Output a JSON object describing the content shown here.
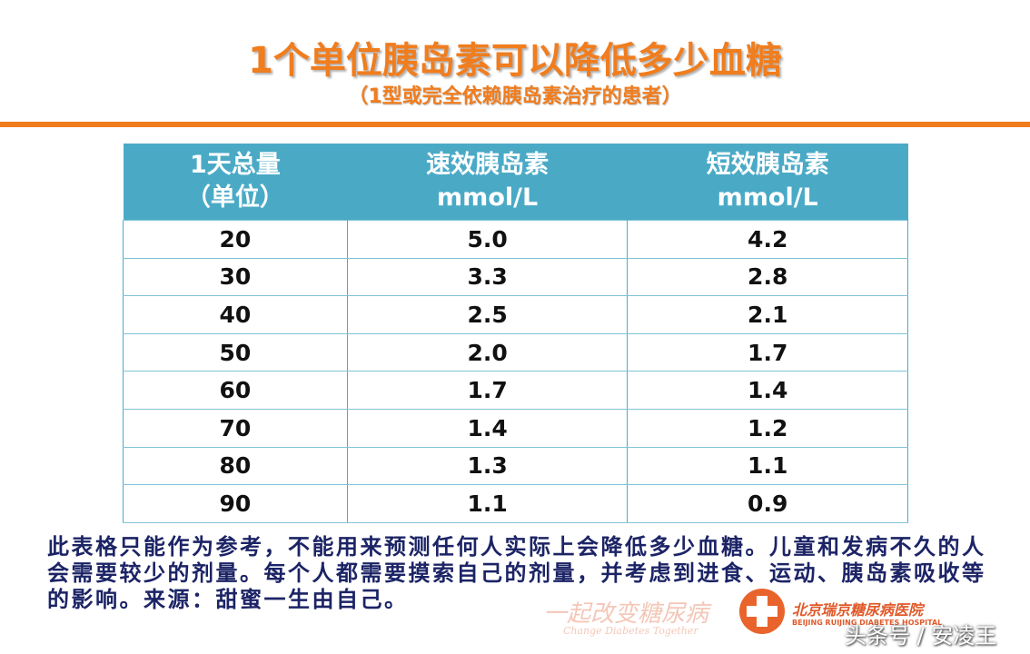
{
  "header": {
    "title": "1个单位胰岛素可以降低多少血糖",
    "subtitle": "（1型或完全依赖胰岛素治疗的患者）"
  },
  "table": {
    "headers": [
      [
        "1天总量",
        "（单位）"
      ],
      [
        "速效胰岛素",
        "mmol/L"
      ],
      [
        "短效胰岛素",
        "mmol/L"
      ]
    ],
    "rows": [
      [
        "20",
        "5.0",
        "4.2"
      ],
      [
        "30",
        "3.3",
        "2.8"
      ],
      [
        "40",
        "2.5",
        "2.1"
      ],
      [
        "50",
        "2.0",
        "1.7"
      ],
      [
        "60",
        "1.7",
        "1.4"
      ],
      [
        "70",
        "1.4",
        "1.2"
      ],
      [
        "80",
        "1.3",
        "1.1"
      ],
      [
        "90",
        "1.1",
        "0.9"
      ]
    ]
  },
  "note": [
    "此表格只能作为参考，不能用来预测任何人实际上会降低多少血糖。儿童和发病不久的人",
    "会需要较少的剂量。每个人都需要摸索自己的剂量，并考虑到进食、运动、胰岛素吸收等",
    "的影响。来源：甜蜜一生由自己。"
  ],
  "logos": {
    "campaign": "一起改变糖尿病",
    "campaign_en": "Change Diabetes Together",
    "hospital": "北京瑞京糖尿病医院",
    "hospital_en": "BEIJING RUIJING DIABETES HOSPITAL"
  },
  "watermark": "头条号 / 安凌王"
}
